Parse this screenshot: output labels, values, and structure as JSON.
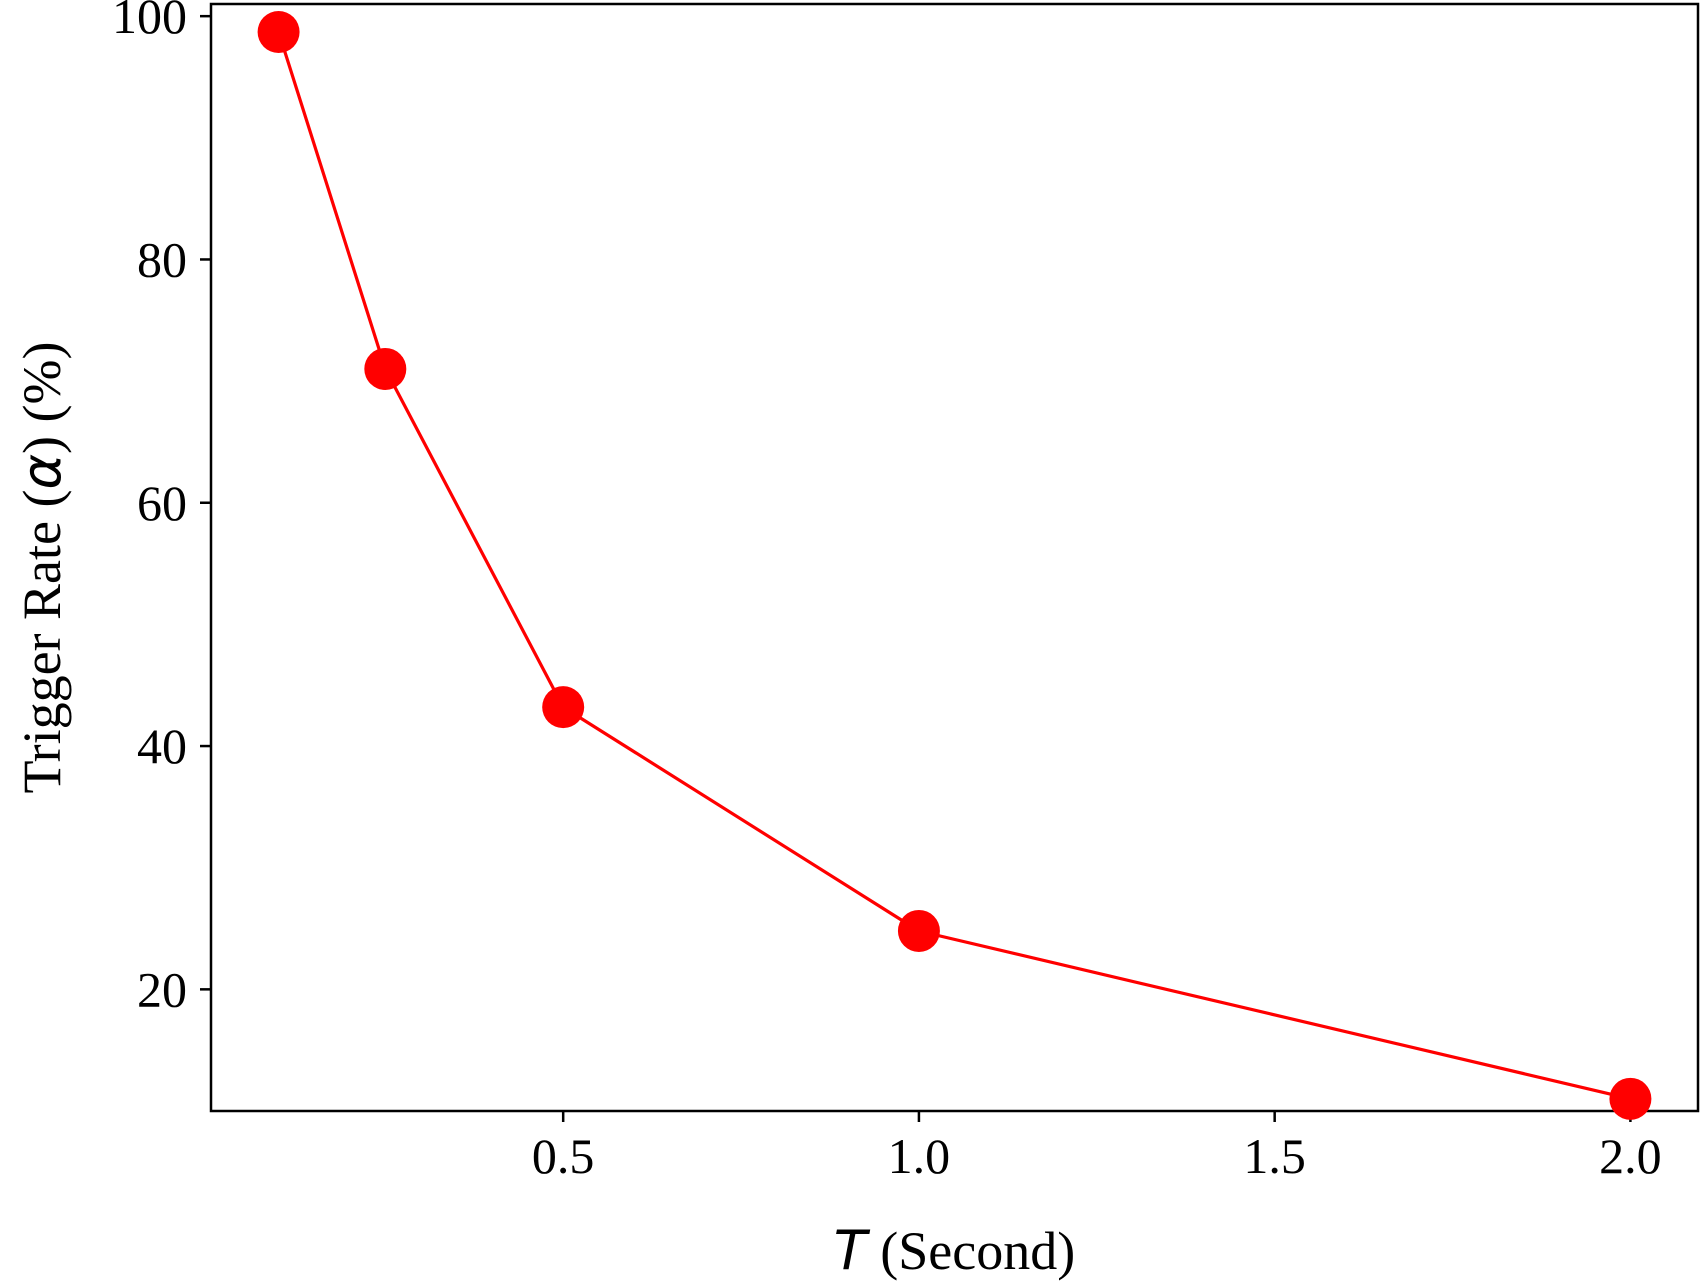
{
  "chart_data": {
    "type": "line",
    "xlabel": {
      "symbol": "T",
      "text": " (Second)"
    },
    "ylabel": {
      "prefix": "Trigger Rate (",
      "symbol": "α",
      "suffix": ") (%)"
    },
    "xlim": [
      0.005,
      2.095
    ],
    "ylim": [
      10,
      101
    ],
    "x_ticks": [
      0.5,
      1.0,
      1.5,
      2.0
    ],
    "x_tick_labels": [
      "0.5",
      "1.0",
      "1.5",
      "2.0"
    ],
    "y_ticks": [
      20,
      40,
      60,
      80,
      100
    ],
    "y_tick_labels": [
      "20",
      "40",
      "60",
      "80",
      "100"
    ],
    "grid": false,
    "series": [
      {
        "color": "#ff0000",
        "marker": "circle",
        "points": [
          {
            "x": 0.1,
            "y": 98.7
          },
          {
            "x": 0.25,
            "y": 71.0
          },
          {
            "x": 0.5,
            "y": 43.2
          },
          {
            "x": 1.0,
            "y": 24.8
          },
          {
            "x": 2.0,
            "y": 11.0
          }
        ]
      }
    ]
  }
}
